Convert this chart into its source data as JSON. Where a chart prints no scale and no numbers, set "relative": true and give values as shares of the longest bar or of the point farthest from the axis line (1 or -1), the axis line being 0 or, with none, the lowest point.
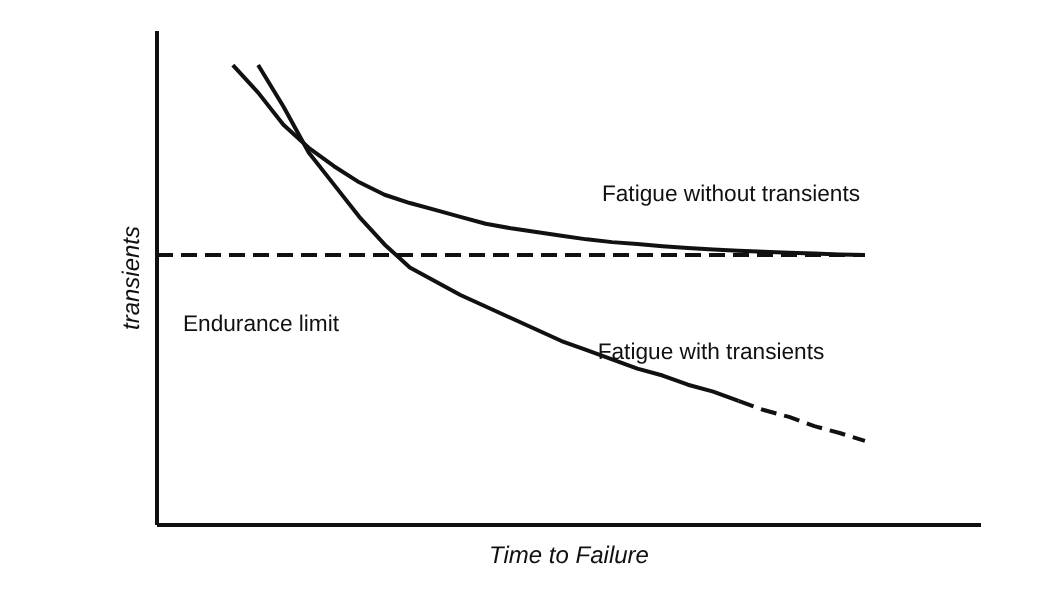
{
  "chart_data": {
    "type": "line",
    "relative": true,
    "xlabel": "Time to Failure",
    "ylabel": "transients",
    "categories": [
      null,
      null,
      null,
      null,
      null,
      null,
      null,
      null,
      null,
      null,
      null,
      null,
      null,
      null,
      null,
      null,
      null,
      null,
      null,
      null,
      null,
      null,
      null,
      null,
      null,
      null,
      null,
      null,
      null
    ],
    "series": [
      {
        "name": "Fatigue without transients",
        "color": "#111111",
        "line_style": "solid",
        "values": [
          null,
          null,
          null,
          1.0,
          0.94,
          0.87,
          0.82,
          0.78,
          0.745,
          0.718,
          0.7,
          0.685,
          0.67,
          0.655,
          0.645,
          0.637,
          0.629,
          0.621,
          0.615,
          0.611,
          0.606,
          0.602,
          0.599,
          0.596,
          0.594,
          0.592,
          0.59,
          0.588,
          0.587
        ]
      },
      {
        "name": "Fatigue with transients",
        "color": "#111111",
        "line_style": "solid",
        "values": [
          null,
          null,
          null,
          null,
          1.0,
          0.91,
          0.81,
          0.74,
          0.67,
          0.61,
          0.56,
          0.53,
          0.5,
          0.475,
          0.45,
          0.425,
          0.4,
          0.38,
          0.36,
          0.34,
          0.325,
          0.305,
          0.29,
          0.27,
          null,
          null,
          null,
          null,
          null
        ]
      },
      {
        "color": "#111111",
        "line_style": "dashed",
        "values": [
          null,
          null,
          null,
          null,
          null,
          null,
          null,
          null,
          null,
          null,
          null,
          null,
          null,
          null,
          null,
          null,
          null,
          null,
          null,
          null,
          null,
          null,
          null,
          0.27,
          0.25,
          0.235,
          0.215,
          0.2,
          0.183
        ]
      },
      {
        "name": "Endurance limit",
        "color": "#111111",
        "line_style": "dashed",
        "values": [
          0.587,
          0.587,
          0.587,
          0.587,
          0.587,
          0.587,
          0.587,
          0.587,
          0.587,
          0.587,
          0.587,
          0.587,
          0.587,
          0.587,
          0.587,
          0.587,
          0.587,
          0.587,
          0.587,
          0.587,
          0.587,
          0.587,
          0.587,
          0.587,
          0.587,
          0.587,
          0.587,
          0.587,
          0.587
        ]
      }
    ]
  }
}
